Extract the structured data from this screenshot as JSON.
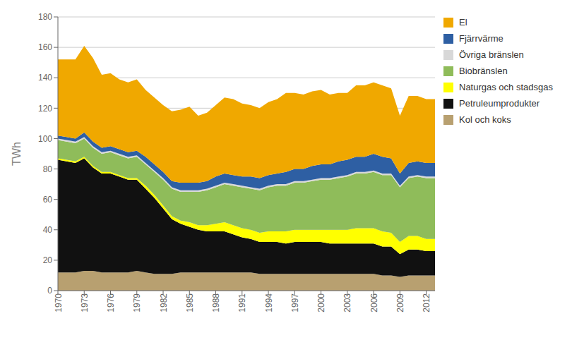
{
  "chart_data": {
    "type": "area",
    "stacked": true,
    "x": [
      1970,
      1971,
      1972,
      1973,
      1974,
      1975,
      1976,
      1977,
      1978,
      1979,
      1980,
      1981,
      1982,
      1983,
      1984,
      1985,
      1986,
      1987,
      1988,
      1989,
      1990,
      1991,
      1992,
      1993,
      1994,
      1995,
      1996,
      1997,
      1998,
      1999,
      2000,
      2001,
      2002,
      2003,
      2004,
      2005,
      2006,
      2007,
      2008,
      2009,
      2010,
      2011,
      2012,
      2013
    ],
    "xlim": [
      1970,
      2013
    ],
    "xticks": [
      1970,
      1973,
      1976,
      1979,
      1982,
      1985,
      1988,
      1991,
      1994,
      1997,
      2000,
      2003,
      2006,
      2009,
      2012
    ],
    "ylabel": "TWh",
    "ylim": [
      0,
      180
    ],
    "yticks": [
      0,
      20,
      40,
      60,
      80,
      100,
      120,
      140,
      160,
      180
    ],
    "grid": true,
    "legend": "right",
    "series": [
      {
        "name": "Kol och koks",
        "color": "#b8a070",
        "values": [
          12,
          12,
          12,
          13,
          13,
          12,
          12,
          12,
          12,
          13,
          12,
          11,
          11,
          11,
          12,
          12,
          12,
          12,
          12,
          12,
          12,
          12,
          12,
          11,
          11,
          11,
          11,
          11,
          11,
          11,
          11,
          11,
          11,
          11,
          11,
          11,
          11,
          10,
          10,
          9,
          10,
          10,
          10,
          10
        ]
      },
      {
        "name": "Petruleumprodukter",
        "color": "#111111",
        "values": [
          74,
          73,
          72,
          74,
          68,
          65,
          65,
          63,
          61,
          60,
          55,
          50,
          43,
          36,
          32,
          30,
          28,
          27,
          27,
          27,
          25,
          23,
          22,
          21,
          21,
          21,
          20,
          21,
          21,
          21,
          21,
          20,
          20,
          20,
          20,
          20,
          20,
          19,
          19,
          15,
          17,
          17,
          16,
          16
        ]
      },
      {
        "name": "Naturgas och stadsgas",
        "color": "#ffff00",
        "values": [
          1,
          1,
          1,
          1,
          1,
          1,
          1,
          1,
          1,
          1,
          2,
          2,
          2,
          2,
          2,
          3,
          3,
          4,
          5,
          6,
          6,
          6,
          6,
          6,
          7,
          7,
          8,
          8,
          8,
          8,
          8,
          9,
          9,
          9,
          10,
          10,
          10,
          10,
          9,
          8,
          9,
          9,
          8,
          8
        ]
      },
      {
        "name": "Biobränslen",
        "color": "#8fbc5a",
        "values": [
          12,
          12,
          12,
          12,
          12,
          12,
          13,
          13,
          13,
          14,
          14,
          15,
          17,
          18,
          19,
          20,
          22,
          23,
          24,
          25,
          26,
          27,
          27,
          28,
          29,
          30,
          30,
          31,
          31,
          32,
          33,
          33,
          34,
          35,
          36,
          36,
          37,
          37,
          38,
          36,
          38,
          39,
          40,
          40
        ]
      },
      {
        "name": "Övriga bränslen",
        "color": "#d8d8d8",
        "values": [
          1,
          1,
          1,
          1,
          1,
          1,
          1,
          1,
          1,
          1,
          1,
          1,
          1,
          1,
          1,
          1,
          1,
          1,
          1,
          1,
          1,
          1,
          1,
          1,
          1,
          1,
          1,
          1,
          1,
          1,
          1,
          1,
          1,
          1,
          1,
          1,
          1,
          1,
          1,
          1,
          1,
          1,
          1,
          1
        ]
      },
      {
        "name": "Fjärrvärme",
        "color": "#2e5fa3",
        "values": [
          2,
          2,
          2,
          3,
          3,
          3,
          3,
          3,
          3,
          3,
          4,
          4,
          4,
          4,
          5,
          5,
          5,
          5,
          6,
          6,
          6,
          6,
          7,
          7,
          7,
          7,
          8,
          8,
          8,
          9,
          9,
          9,
          10,
          10,
          10,
          10,
          11,
          11,
          10,
          8,
          9,
          9,
          9,
          9
        ]
      },
      {
        "name": "El",
        "color": "#f0a800",
        "values": [
          50,
          51,
          52,
          57,
          55,
          48,
          48,
          46,
          46,
          47,
          44,
          44,
          44,
          46,
          48,
          50,
          44,
          45,
          47,
          50,
          50,
          48,
          47,
          46,
          48,
          49,
          52,
          50,
          49,
          49,
          49,
          46,
          45,
          44,
          47,
          47,
          47,
          47,
          46,
          38,
          44,
          43,
          42,
          42
        ]
      }
    ]
  }
}
